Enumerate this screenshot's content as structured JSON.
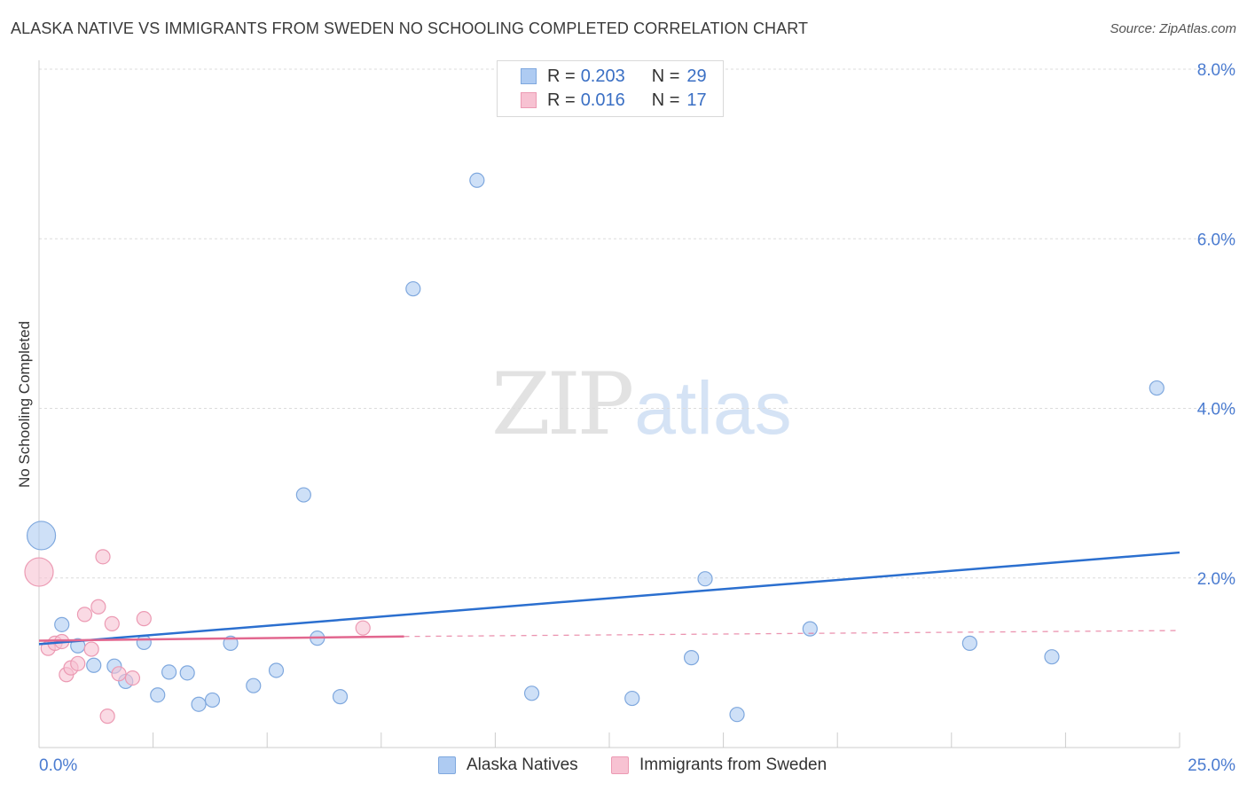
{
  "title": "ALASKA NATIVE VS IMMIGRANTS FROM SWEDEN NO SCHOOLING COMPLETED CORRELATION CHART",
  "source": "Source: ZipAtlas.com",
  "watermark": {
    "zip": "ZIP",
    "atlas": "atlas"
  },
  "legend_top": {
    "rows": [
      {
        "r_label": "R =",
        "r_value": "0.203",
        "n_label": "N =",
        "n_value": "29",
        "color": "#aecbf2",
        "stroke": "#7fa8de"
      },
      {
        "r_label": "R =",
        "r_value": "0.016",
        "n_label": "N =",
        "n_value": "17",
        "color": "#f7c2d2",
        "stroke": "#ec9ab3"
      }
    ]
  },
  "legend_bottom": {
    "items": [
      {
        "label": "Alaska Natives",
        "color": "#aecbf2",
        "stroke": "#7fa8de"
      },
      {
        "label": "Immigrants from Sweden",
        "color": "#f7c2d2",
        "stroke": "#ec9ab3"
      }
    ]
  },
  "chart_data": {
    "type": "scatter",
    "title": "ALASKA NATIVE VS IMMIGRANTS FROM SWEDEN NO SCHOOLING COMPLETED CORRELATION CHART",
    "xlabel": "",
    "ylabel": "No Schooling Completed",
    "xlim": [
      0,
      25
    ],
    "ylim": [
      0,
      8
    ],
    "x_tick_labels": [
      "0.0%",
      "25.0%"
    ],
    "y_ticks": [
      2,
      4,
      6,
      8
    ],
    "y_tick_labels": [
      "2.0%",
      "4.0%",
      "6.0%",
      "8.0%"
    ],
    "grid": true,
    "legend_position": "top-center",
    "series": [
      {
        "name": "Alaska Natives",
        "color": "#aecbf2",
        "stroke": "#7fa8de",
        "trend_color": "#2b6fcf",
        "R": 0.203,
        "N": 29,
        "trend": {
          "x": [
            0,
            25
          ],
          "y": [
            1.22,
            2.3
          ]
        },
        "points": [
          {
            "x": 0.05,
            "y": 2.5,
            "big": true
          },
          {
            "x": 0.5,
            "y": 1.45
          },
          {
            "x": 0.85,
            "y": 1.2
          },
          {
            "x": 1.2,
            "y": 0.97
          },
          {
            "x": 1.65,
            "y": 0.96
          },
          {
            "x": 1.9,
            "y": 0.78
          },
          {
            "x": 2.3,
            "y": 1.24
          },
          {
            "x": 2.6,
            "y": 0.62
          },
          {
            "x": 2.85,
            "y": 0.89
          },
          {
            "x": 3.25,
            "y": 0.88
          },
          {
            "x": 3.5,
            "y": 0.51
          },
          {
            "x": 3.8,
            "y": 0.56
          },
          {
            "x": 4.2,
            "y": 1.23
          },
          {
            "x": 4.7,
            "y": 0.73
          },
          {
            "x": 5.2,
            "y": 0.91
          },
          {
            "x": 5.8,
            "y": 2.98
          },
          {
            "x": 6.1,
            "y": 1.29
          },
          {
            "x": 6.6,
            "y": 0.6
          },
          {
            "x": 8.2,
            "y": 5.41
          },
          {
            "x": 9.6,
            "y": 6.69
          },
          {
            "x": 10.8,
            "y": 0.64
          },
          {
            "x": 13.0,
            "y": 0.58
          },
          {
            "x": 14.3,
            "y": 1.06
          },
          {
            "x": 14.6,
            "y": 1.99
          },
          {
            "x": 15.3,
            "y": 0.39
          },
          {
            "x": 16.9,
            "y": 1.4
          },
          {
            "x": 20.4,
            "y": 1.23
          },
          {
            "x": 22.2,
            "y": 1.07
          },
          {
            "x": 24.5,
            "y": 4.24
          }
        ]
      },
      {
        "name": "Immigrants from Sweden",
        "color": "#f7c2d2",
        "stroke": "#ec9ab3",
        "trend_color": "#e2678f",
        "R": 0.016,
        "N": 17,
        "trend": {
          "x": [
            0,
            8
          ],
          "y": [
            1.26,
            1.31
          ],
          "dashed_to": [
            25,
            1.38
          ]
        },
        "points": [
          {
            "x": 0.0,
            "y": 2.07,
            "big": true
          },
          {
            "x": 0.2,
            "y": 1.17
          },
          {
            "x": 0.35,
            "y": 1.23
          },
          {
            "x": 0.5,
            "y": 1.25
          },
          {
            "x": 0.6,
            "y": 0.86
          },
          {
            "x": 0.7,
            "y": 0.94
          },
          {
            "x": 0.85,
            "y": 0.99
          },
          {
            "x": 1.0,
            "y": 1.57
          },
          {
            "x": 1.15,
            "y": 1.16
          },
          {
            "x": 1.3,
            "y": 1.66
          },
          {
            "x": 1.4,
            "y": 2.25
          },
          {
            "x": 1.5,
            "y": 0.37
          },
          {
            "x": 1.6,
            "y": 1.46
          },
          {
            "x": 1.75,
            "y": 0.87
          },
          {
            "x": 2.05,
            "y": 0.82
          },
          {
            "x": 2.3,
            "y": 1.52
          },
          {
            "x": 7.1,
            "y": 1.41
          }
        ]
      }
    ]
  }
}
